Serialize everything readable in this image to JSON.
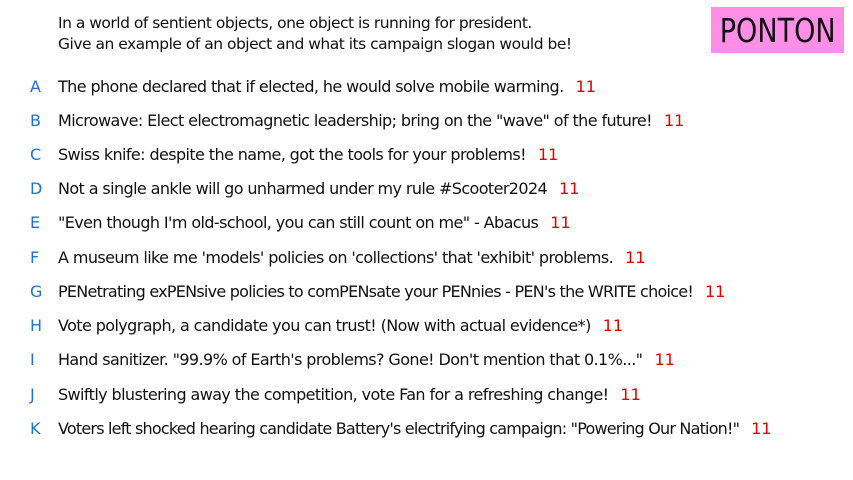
{
  "prompt": {
    "line1": "In a world of sentient objects, one object is running for president.",
    "line2": "Give an example of an object and what its campaign slogan would be!"
  },
  "badge": {
    "label": "PONTON",
    "color": "#ff8ee6"
  },
  "colors": {
    "letter": "#1b72d9",
    "score": "#e00000",
    "text": "#111111"
  },
  "answers": [
    {
      "letter": "A",
      "text": "The phone declared that if elected, he would solve mobile warming.",
      "score": "11"
    },
    {
      "letter": "B",
      "text": "Microwave: Elect electromagnetic leadership; bring on the \"wave\" of the future!",
      "score": "11"
    },
    {
      "letter": "C",
      "text": "Swiss knife: despite the name, got the tools for your problems!",
      "score": "11"
    },
    {
      "letter": "D",
      "text": "Not a single ankle will go unharmed under my rule #Scooter2024",
      "score": "11"
    },
    {
      "letter": "E",
      "text": "\"Even though I'm old-school, you can still count on me\" - Abacus",
      "score": "11"
    },
    {
      "letter": "F",
      "text": "A museum like me 'models' policies on 'collections' that 'exhibit' problems.",
      "score": "11"
    },
    {
      "letter": "G",
      "text": "PENetrating exPENsive policies to comPENsate your PENnies - PEN's the WRITE choice!",
      "score": "11"
    },
    {
      "letter": "H",
      "text": "Vote polygraph, a candidate you can trust! (Now with actual evidence*)",
      "score": "11"
    },
    {
      "letter": "I",
      "text": "Hand sanitizer. \"99.9% of Earth's problems? Gone! Don't mention that 0.1%...\"",
      "score": "11"
    },
    {
      "letter": "J",
      "text": "Swiftly blustering away the competition, vote Fan for a refreshing change!",
      "score": "11"
    },
    {
      "letter": "K",
      "text": "Voters left shocked hearing candidate Battery's electrifying campaign: \"Powering Our Nation!\"",
      "score": "11"
    }
  ]
}
